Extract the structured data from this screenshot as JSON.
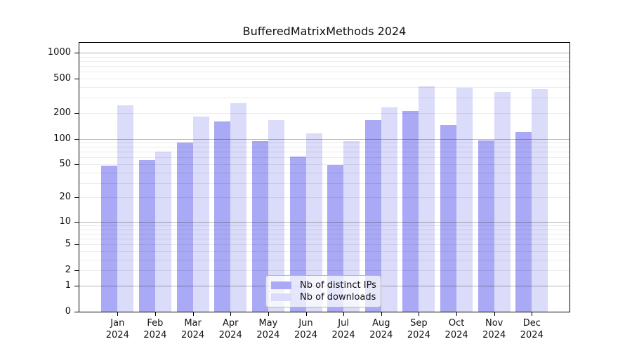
{
  "title": "BufferedMatrixMethods 2024",
  "colors": {
    "distinct_ips": "#a9a9f5",
    "downloads": "#dbdbfa",
    "grid_minor": "rgba(0,0,0,0.08)",
    "grid_major": "rgba(0,0,0,0.30)",
    "axis": "#000000",
    "background": "#ffffff"
  },
  "legend": {
    "items": [
      {
        "label": "Nb of distinct IPs",
        "series_key": "distinct_ips"
      },
      {
        "label": "Nb of downloads",
        "series_key": "downloads"
      }
    ]
  },
  "y_axis": {
    "scale": "log10(1+x)",
    "tick_values": [
      0,
      1,
      2,
      5,
      10,
      20,
      50,
      100,
      200,
      500,
      1000
    ],
    "tick_labels": [
      "0",
      "1",
      "2",
      "5",
      "10",
      "20",
      "50",
      "100",
      "200",
      "500",
      "1000"
    ],
    "gridlines_major": [
      1,
      10,
      100,
      1000
    ],
    "gridlines_minor": [
      2,
      3,
      4,
      5,
      6,
      7,
      8,
      9,
      20,
      30,
      40,
      50,
      60,
      70,
      80,
      90,
      200,
      300,
      400,
      500,
      600,
      700,
      800,
      900
    ]
  },
  "x_axis": {
    "months": [
      {
        "month": "Jan",
        "year": "2024"
      },
      {
        "month": "Feb",
        "year": "2024"
      },
      {
        "month": "Mar",
        "year": "2024"
      },
      {
        "month": "Apr",
        "year": "2024"
      },
      {
        "month": "May",
        "year": "2024"
      },
      {
        "month": "Jun",
        "year": "2024"
      },
      {
        "month": "Jul",
        "year": "2024"
      },
      {
        "month": "Aug",
        "year": "2024"
      },
      {
        "month": "Sep",
        "year": "2024"
      },
      {
        "month": "Oct",
        "year": "2024"
      },
      {
        "month": "Nov",
        "year": "2024"
      },
      {
        "month": "Dec",
        "year": "2024"
      }
    ]
  },
  "chart_data": {
    "type": "bar",
    "title": "BufferedMatrixMethods 2024",
    "categories": [
      "Jan 2024",
      "Feb 2024",
      "Mar 2024",
      "Apr 2024",
      "May 2024",
      "Jun 2024",
      "Jul 2024",
      "Aug 2024",
      "Sep 2024",
      "Oct 2024",
      "Nov 2024",
      "Dec 2024"
    ],
    "series": [
      {
        "name": "Nb of distinct IPs",
        "color": "#a9a9f5",
        "values": [
          48,
          56,
          91,
          158,
          94,
          62,
          49,
          165,
          211,
          144,
          96,
          120
        ]
      },
      {
        "name": "Nb of downloads",
        "color": "#dbdbfa",
        "values": [
          245,
          70,
          180,
          260,
          165,
          115,
          93,
          230,
          404,
          390,
          350,
          379
        ]
      }
    ],
    "xlabel": "",
    "ylabel": "",
    "yscale": "log1p",
    "ylim": [
      0,
      1300
    ],
    "grid": true,
    "legend_position": "inside-bottom-center"
  }
}
